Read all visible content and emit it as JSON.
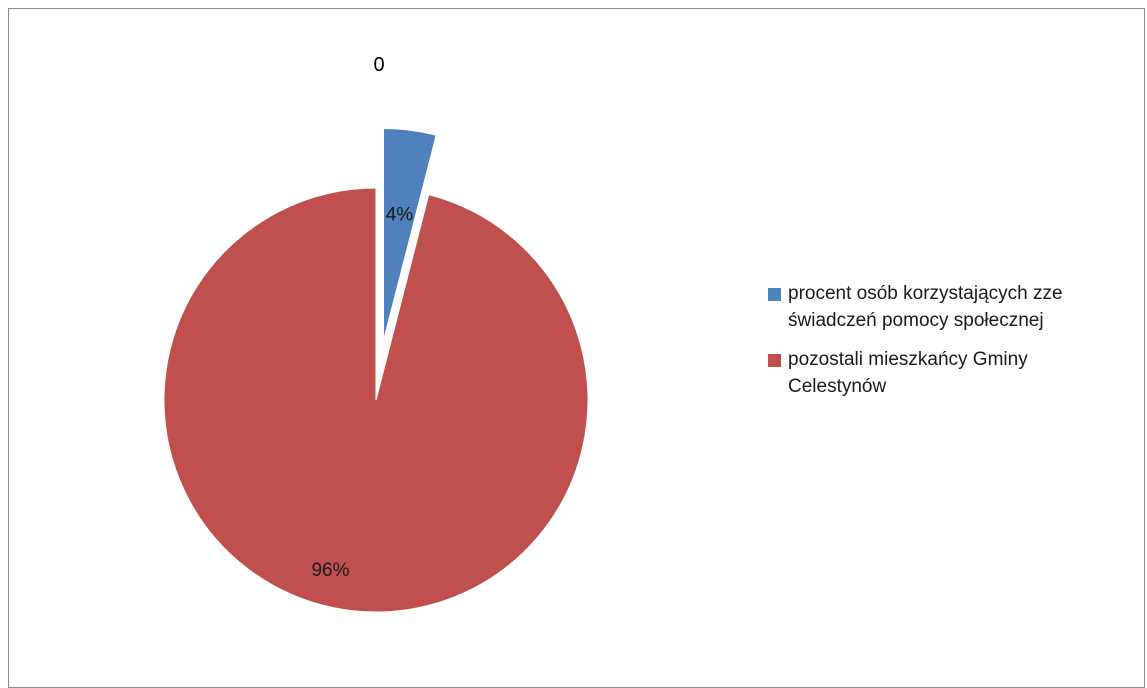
{
  "chart_data": {
    "type": "pie",
    "title": "0",
    "series": [
      {
        "name": "",
        "slices": [
          {
            "label": "procent osób korzystających zze świadczeń pomocy społecznej",
            "value": 4,
            "data_label": "4%",
            "color": "#4F81BD",
            "exploded": true
          },
          {
            "label": "pozostali mieszkańcy Gminy Celestynów",
            "value": 96,
            "data_label": "96%",
            "color": "#C0504D",
            "exploded": false
          }
        ]
      }
    ],
    "legend_position": "right"
  },
  "legend": {
    "items": [
      {
        "line1": "procent osób korzystających zze",
        "line2": "świadczeń pomocy społecznej",
        "color": "#4F81BD"
      },
      {
        "line1": "pozostali mieszkańcy Gminy",
        "line2": "Celestynów",
        "color": "#C0504D"
      }
    ]
  }
}
